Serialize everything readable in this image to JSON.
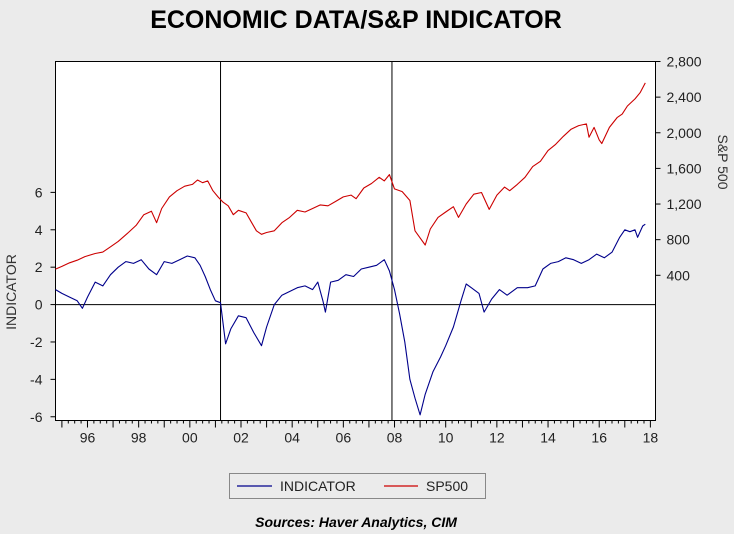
{
  "chart_data": {
    "type": "line",
    "title": "ECONOMIC DATA/S&P INDICATOR",
    "source": "Sources:  Haver Analytics, CIM",
    "xlim": [
      1994.75,
      2018.2
    ],
    "x_ticks": [
      "96",
      "98",
      "00",
      "02",
      "04",
      "06",
      "08",
      "10",
      "12",
      "14",
      "16",
      "18"
    ],
    "left_axis": {
      "label": "INDICATOR",
      "ylim": [
        -6.2,
        13.0
      ],
      "ticks": [
        -6,
        -4,
        -2,
        0,
        2,
        4,
        6
      ]
    },
    "right_axis": {
      "label": "S&P 500",
      "ylim": [
        -1230,
        2800
      ],
      "ticks": [
        "400",
        "800",
        "1,200",
        "1,600",
        "2,000",
        "2,400",
        "2,800"
      ]
    },
    "reference_lines": {
      "horizontal_y": 0,
      "vertical_x": [
        2001.2,
        2007.9
      ]
    },
    "legend": {
      "position": "bottom",
      "entries": [
        "INDICATOR",
        "SP500"
      ]
    },
    "colors": {
      "indicator": "#00008b",
      "sp500": "#cc0000"
    },
    "series": [
      {
        "name": "INDICATOR",
        "axis": "left",
        "points": [
          [
            1994.75,
            0.8
          ],
          [
            1995.0,
            0.6
          ],
          [
            1995.3,
            0.4
          ],
          [
            1995.6,
            0.2
          ],
          [
            1995.8,
            -0.2
          ],
          [
            1996.0,
            0.4
          ],
          [
            1996.3,
            1.2
          ],
          [
            1996.6,
            1.0
          ],
          [
            1996.9,
            1.6
          ],
          [
            1997.2,
            2.0
          ],
          [
            1997.5,
            2.3
          ],
          [
            1997.8,
            2.2
          ],
          [
            1998.1,
            2.4
          ],
          [
            1998.4,
            1.9
          ],
          [
            1998.7,
            1.6
          ],
          [
            1999.0,
            2.3
          ],
          [
            1999.3,
            2.2
          ],
          [
            1999.6,
            2.4
          ],
          [
            1999.9,
            2.6
          ],
          [
            2000.2,
            2.5
          ],
          [
            2000.4,
            2.1
          ],
          [
            2000.6,
            1.5
          ],
          [
            2000.8,
            0.8
          ],
          [
            2001.0,
            0.2
          ],
          [
            2001.2,
            0.1
          ],
          [
            2001.4,
            -2.1
          ],
          [
            2001.6,
            -1.3
          ],
          [
            2001.9,
            -0.6
          ],
          [
            2002.2,
            -0.7
          ],
          [
            2002.5,
            -1.5
          ],
          [
            2002.8,
            -2.2
          ],
          [
            2003.0,
            -1.2
          ],
          [
            2003.3,
            0.0
          ],
          [
            2003.6,
            0.5
          ],
          [
            2003.9,
            0.7
          ],
          [
            2004.2,
            0.9
          ],
          [
            2004.5,
            1.0
          ],
          [
            2004.8,
            0.8
          ],
          [
            2005.0,
            1.2
          ],
          [
            2005.2,
            0.2
          ],
          [
            2005.3,
            -0.4
          ],
          [
            2005.5,
            1.2
          ],
          [
            2005.8,
            1.3
          ],
          [
            2006.1,
            1.6
          ],
          [
            2006.4,
            1.5
          ],
          [
            2006.7,
            1.9
          ],
          [
            2007.0,
            2.0
          ],
          [
            2007.3,
            2.1
          ],
          [
            2007.6,
            2.4
          ],
          [
            2007.8,
            1.8
          ],
          [
            2008.0,
            0.8
          ],
          [
            2008.2,
            -0.5
          ],
          [
            2008.4,
            -2.0
          ],
          [
            2008.6,
            -4.0
          ],
          [
            2008.8,
            -5.0
          ],
          [
            2009.0,
            -5.9
          ],
          [
            2009.2,
            -4.8
          ],
          [
            2009.5,
            -3.6
          ],
          [
            2009.8,
            -2.8
          ],
          [
            2010.0,
            -2.2
          ],
          [
            2010.3,
            -1.2
          ],
          [
            2010.6,
            0.2
          ],
          [
            2010.8,
            1.1
          ],
          [
            2011.0,
            0.9
          ],
          [
            2011.3,
            0.6
          ],
          [
            2011.5,
            -0.4
          ],
          [
            2011.8,
            0.3
          ],
          [
            2012.1,
            0.8
          ],
          [
            2012.4,
            0.5
          ],
          [
            2012.8,
            0.9
          ],
          [
            2013.2,
            0.9
          ],
          [
            2013.5,
            1.0
          ],
          [
            2013.8,
            1.9
          ],
          [
            2014.1,
            2.2
          ],
          [
            2014.4,
            2.3
          ],
          [
            2014.7,
            2.5
          ],
          [
            2015.0,
            2.4
          ],
          [
            2015.3,
            2.2
          ],
          [
            2015.6,
            2.4
          ],
          [
            2015.9,
            2.7
          ],
          [
            2016.2,
            2.5
          ],
          [
            2016.5,
            2.8
          ],
          [
            2016.8,
            3.6
          ],
          [
            2017.0,
            4.0
          ],
          [
            2017.2,
            3.9
          ],
          [
            2017.4,
            4.0
          ],
          [
            2017.5,
            3.6
          ],
          [
            2017.7,
            4.2
          ],
          [
            2017.8,
            4.3
          ]
        ]
      },
      {
        "name": "SP500",
        "axis": "right",
        "points": [
          [
            1994.75,
            470
          ],
          [
            1995.0,
            500
          ],
          [
            1995.3,
            540
          ],
          [
            1995.6,
            570
          ],
          [
            1995.9,
            610
          ],
          [
            1996.3,
            645
          ],
          [
            1996.6,
            660
          ],
          [
            1996.9,
            720
          ],
          [
            1997.2,
            780
          ],
          [
            1997.6,
            880
          ],
          [
            1997.9,
            960
          ],
          [
            1998.2,
            1080
          ],
          [
            1998.5,
            1120
          ],
          [
            1998.7,
            990
          ],
          [
            1998.9,
            1150
          ],
          [
            1999.2,
            1280
          ],
          [
            1999.5,
            1350
          ],
          [
            1999.8,
            1400
          ],
          [
            2000.1,
            1420
          ],
          [
            2000.3,
            1470
          ],
          [
            2000.5,
            1440
          ],
          [
            2000.7,
            1460
          ],
          [
            2000.9,
            1350
          ],
          [
            2001.1,
            1280
          ],
          [
            2001.3,
            1220
          ],
          [
            2001.5,
            1180
          ],
          [
            2001.7,
            1080
          ],
          [
            2001.9,
            1130
          ],
          [
            2002.2,
            1100
          ],
          [
            2002.4,
            1000
          ],
          [
            2002.6,
            900
          ],
          [
            2002.8,
            860
          ],
          [
            2003.0,
            880
          ],
          [
            2003.3,
            900
          ],
          [
            2003.6,
            990
          ],
          [
            2003.9,
            1050
          ],
          [
            2004.2,
            1130
          ],
          [
            2004.5,
            1110
          ],
          [
            2004.8,
            1150
          ],
          [
            2005.1,
            1190
          ],
          [
            2005.4,
            1180
          ],
          [
            2005.7,
            1230
          ],
          [
            2006.0,
            1280
          ],
          [
            2006.3,
            1300
          ],
          [
            2006.5,
            1260
          ],
          [
            2006.8,
            1380
          ],
          [
            2007.1,
            1430
          ],
          [
            2007.4,
            1500
          ],
          [
            2007.6,
            1460
          ],
          [
            2007.8,
            1530
          ],
          [
            2008.0,
            1370
          ],
          [
            2008.3,
            1340
          ],
          [
            2008.6,
            1240
          ],
          [
            2008.8,
            900
          ],
          [
            2009.0,
            820
          ],
          [
            2009.2,
            740
          ],
          [
            2009.4,
            920
          ],
          [
            2009.7,
            1050
          ],
          [
            2010.0,
            1110
          ],
          [
            2010.3,
            1170
          ],
          [
            2010.5,
            1050
          ],
          [
            2010.8,
            1200
          ],
          [
            2011.1,
            1310
          ],
          [
            2011.4,
            1330
          ],
          [
            2011.7,
            1140
          ],
          [
            2012.0,
            1300
          ],
          [
            2012.3,
            1390
          ],
          [
            2012.5,
            1350
          ],
          [
            2012.8,
            1420
          ],
          [
            2013.1,
            1500
          ],
          [
            2013.4,
            1620
          ],
          [
            2013.7,
            1680
          ],
          [
            2014.0,
            1800
          ],
          [
            2014.3,
            1870
          ],
          [
            2014.6,
            1960
          ],
          [
            2014.9,
            2040
          ],
          [
            2015.2,
            2080
          ],
          [
            2015.5,
            2100
          ],
          [
            2015.6,
            1950
          ],
          [
            2015.8,
            2060
          ],
          [
            2016.0,
            1920
          ],
          [
            2016.1,
            1880
          ],
          [
            2016.4,
            2060
          ],
          [
            2016.7,
            2170
          ],
          [
            2016.9,
            2210
          ],
          [
            2017.1,
            2300
          ],
          [
            2017.4,
            2380
          ],
          [
            2017.6,
            2450
          ],
          [
            2017.8,
            2560
          ]
        ]
      }
    ]
  }
}
